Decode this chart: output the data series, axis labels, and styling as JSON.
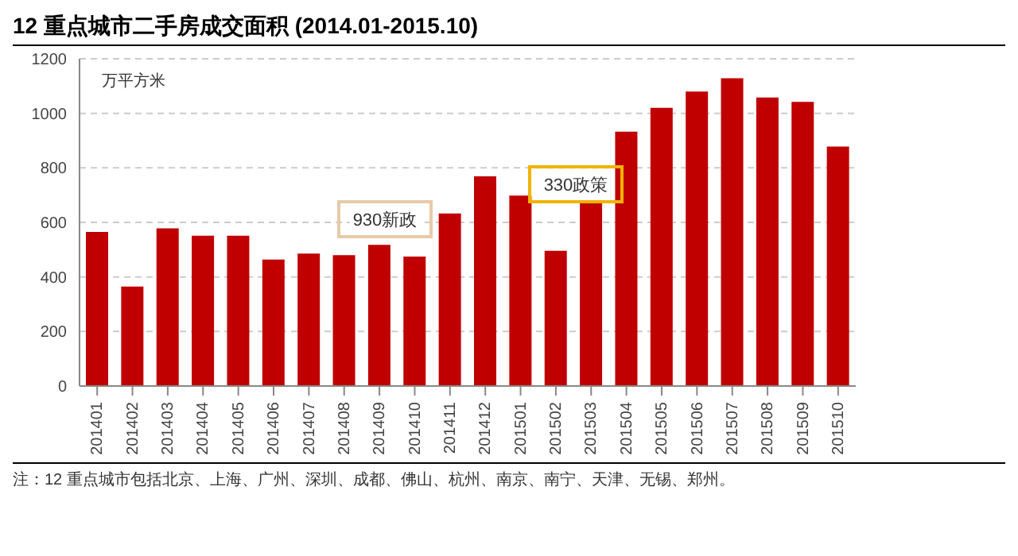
{
  "chart_data": {
    "type": "bar",
    "title": "12 重点城市二手房成交面积 (2014.01-2015.10)",
    "ylabel": "万平方米",
    "categories": [
      "201401",
      "201402",
      "201403",
      "201404",
      "201405",
      "201406",
      "201407",
      "201408",
      "201409",
      "201410",
      "201411",
      "201412",
      "201501",
      "201502",
      "201503",
      "201504",
      "201505",
      "201506",
      "201507",
      "201508",
      "201509",
      "201510"
    ],
    "values": [
      565,
      365,
      578,
      551,
      551,
      464,
      486,
      480,
      518,
      475,
      633,
      769,
      698,
      496,
      676,
      933,
      1020,
      1080,
      1129,
      1058,
      1042,
      878
    ],
    "color": "#c00000",
    "ylim": [
      0,
      1200
    ],
    "yticks": [
      0,
      200,
      400,
      600,
      800,
      1000,
      1200
    ],
    "grid": "y",
    "annotations": [
      "930新政",
      "330政策",
      "注：12 重点城市包括北京、上海、广州、深圳、成都、佛山、杭州、南京、南宁、天津、无锡、郑州。"
    ]
  }
}
